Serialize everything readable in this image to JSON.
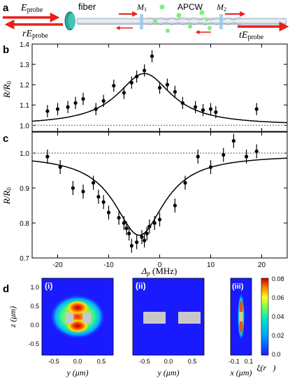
{
  "panel_a": {
    "panel_label": "a",
    "e_probe": "E",
    "e_probe_sub": "probe",
    "r_e_probe": "rE",
    "r_e_probe_sub": "probe",
    "fiber": "fiber",
    "m1": "M",
    "m1_sub": "1",
    "apcw": "APCW",
    "m2": "M",
    "m2_sub": "2",
    "t_e_probe": "tE",
    "t_e_probe_sub": "probe"
  },
  "panel_d": {
    "panel_label": "d",
    "sub_i": "(i)",
    "sub_ii": "(ii)",
    "sub_iii": "(iii)",
    "z_axis_label": "z (μm)",
    "y_axis_label_i": "y (μm)",
    "y_axis_label_ii": "y (μm)",
    "x_axis_label_iii": "x (μm)",
    "colorbar_label": "ξ(r⃗)",
    "z_ticks": [
      "1.0",
      "0.5",
      "0.0",
      "-0.5"
    ],
    "y_ticks": [
      "-0.5",
      "0.0",
      "0.5"
    ],
    "x_ticks_iii": [
      "-0.1",
      "0.1"
    ],
    "colorbar_ticks": [
      "0.08",
      "0.06",
      "0.04",
      "0.02",
      "0.0"
    ]
  },
  "chart_data": [
    {
      "panel": "b",
      "type": "scatter",
      "ylabel": "R/R0",
      "xlim": [
        -25,
        25
      ],
      "ylim": [
        0.97,
        1.4
      ],
      "yticks": [
        1.0,
        1.1,
        1.2,
        1.3,
        1.4
      ],
      "ytick_labels": [
        "1.0",
        "1.1",
        "1.2",
        "1.3",
        "1.4"
      ],
      "baseline": 1.0,
      "points": [
        {
          "x": -22,
          "y": 1.07,
          "err": 0.03
        },
        {
          "x": -20,
          "y": 1.08,
          "err": 0.03
        },
        {
          "x": -18,
          "y": 1.09,
          "err": 0.03
        },
        {
          "x": -16.5,
          "y": 1.11,
          "err": 0.03
        },
        {
          "x": -15,
          "y": 1.13,
          "err": 0.03
        },
        {
          "x": -12.5,
          "y": 1.08,
          "err": 0.03
        },
        {
          "x": -11,
          "y": 1.12,
          "err": 0.03
        },
        {
          "x": -9,
          "y": 1.195,
          "err": 0.03
        },
        {
          "x": -7,
          "y": 1.16,
          "err": 0.03
        },
        {
          "x": -5.5,
          "y": 1.21,
          "err": 0.03
        },
        {
          "x": -4.5,
          "y": 1.24,
          "err": 0.03
        },
        {
          "x": -3,
          "y": 1.27,
          "err": 0.03
        },
        {
          "x": -1.5,
          "y": 1.34,
          "err": 0.03
        },
        {
          "x": 0,
          "y": 1.185,
          "err": 0.03
        },
        {
          "x": 1.5,
          "y": 1.2,
          "err": 0.03
        },
        {
          "x": 3,
          "y": 1.165,
          "err": 0.03
        },
        {
          "x": 4.5,
          "y": 1.11,
          "err": 0.03
        },
        {
          "x": 7,
          "y": 1.09,
          "err": 0.03
        },
        {
          "x": 8.5,
          "y": 1.075,
          "err": 0.03
        },
        {
          "x": 10,
          "y": 1.08,
          "err": 0.03
        },
        {
          "x": 11,
          "y": 1.065,
          "err": 0.03
        },
        {
          "x": 19,
          "y": 1.08,
          "err": 0.03
        }
      ],
      "fit": {
        "type": "lorentzian",
        "center": -3,
        "amplitude": 0.255,
        "hwhm": 6.5,
        "offset": 1.0
      }
    },
    {
      "panel": "c",
      "type": "scatter",
      "ylabel": "R/R0",
      "xlabel": "Δp (MHz)",
      "xlim": [
        -25,
        25
      ],
      "ylim": [
        0.7,
        1.06
      ],
      "xticks": [
        -20,
        -10,
        0,
        10,
        20
      ],
      "xtick_labels": [
        "-20",
        "-10",
        "0",
        "10",
        "20"
      ],
      "yticks": [
        0.7,
        0.8,
        0.9,
        1.0
      ],
      "ytick_labels": [
        "0.7",
        "0.8",
        "0.9",
        "1.0"
      ],
      "baseline": 1.0,
      "points": [
        {
          "x": -22,
          "y": 0.99,
          "err": 0.02
        },
        {
          "x": -19.5,
          "y": 0.96,
          "err": 0.02
        },
        {
          "x": -17,
          "y": 0.9,
          "err": 0.02
        },
        {
          "x": -15,
          "y": 0.89,
          "err": 0.02
        },
        {
          "x": -13,
          "y": 0.915,
          "err": 0.02
        },
        {
          "x": -12,
          "y": 0.875,
          "err": 0.02
        },
        {
          "x": -11,
          "y": 0.86,
          "err": 0.02
        },
        {
          "x": -10,
          "y": 0.83,
          "err": 0.02
        },
        {
          "x": -8,
          "y": 0.815,
          "err": 0.02
        },
        {
          "x": -7,
          "y": 0.8,
          "err": 0.02
        },
        {
          "x": -6.5,
          "y": 0.785,
          "err": 0.02
        },
        {
          "x": -6,
          "y": 0.77,
          "err": 0.02
        },
        {
          "x": -5.5,
          "y": 0.735,
          "err": 0.02
        },
        {
          "x": -4.5,
          "y": 0.745,
          "err": 0.02
        },
        {
          "x": -3.5,
          "y": 0.76,
          "err": 0.02
        },
        {
          "x": -3,
          "y": 0.75,
          "err": 0.02
        },
        {
          "x": -2.5,
          "y": 0.77,
          "err": 0.02
        },
        {
          "x": -2,
          "y": 0.79,
          "err": 0.02
        },
        {
          "x": -1,
          "y": 0.8,
          "err": 0.02
        },
        {
          "x": 0,
          "y": 0.81,
          "err": 0.02
        },
        {
          "x": 3,
          "y": 0.85,
          "err": 0.02
        },
        {
          "x": 5,
          "y": 0.915,
          "err": 0.02
        },
        {
          "x": 7.5,
          "y": 0.99,
          "err": 0.02
        },
        {
          "x": 10,
          "y": 0.96,
          "err": 0.02
        },
        {
          "x": 12.5,
          "y": 0.995,
          "err": 0.02
        },
        {
          "x": 14.5,
          "y": 1.035,
          "err": 0.02
        },
        {
          "x": 17,
          "y": 0.99,
          "err": 0.02
        },
        {
          "x": 19,
          "y": 1.005,
          "err": 0.02
        }
      ],
      "fit": {
        "type": "lorentzian",
        "center": -4,
        "amplitude": -0.23,
        "hwhm": 6.0,
        "offset": 0.995
      }
    }
  ]
}
